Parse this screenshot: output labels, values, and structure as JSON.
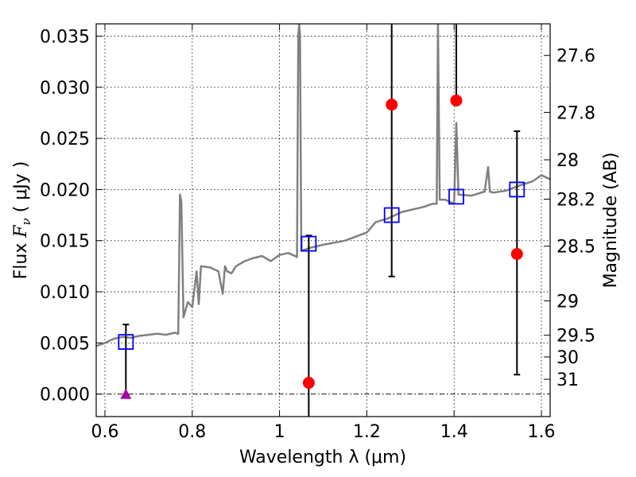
{
  "chart_data": {
    "type": "scatter",
    "xlabel": "Wavelength  λ (μm)",
    "ylabel_prefix": "Flux  ",
    "ylabel_symbol": "F",
    "ylabel_sub": "ν",
    "ylabel_suffix": "  ( μJy )",
    "right_ylabel": "Magnitude (AB)",
    "xlim": [
      0.58,
      1.62
    ],
    "ylim": [
      -0.0022,
      0.0362
    ],
    "grid": true,
    "x_ticks": [
      {
        "value": 0.6,
        "label": "0.6"
      },
      {
        "value": 0.8,
        "label": "0.8"
      },
      {
        "value": 1.0,
        "label": "1"
      },
      {
        "value": 1.2,
        "label": "1.2"
      },
      {
        "value": 1.4,
        "label": "1.4"
      },
      {
        "value": 1.6,
        "label": "1.6"
      }
    ],
    "y_ticks": [
      {
        "value": 0.0,
        "label": "0.000"
      },
      {
        "value": 0.005,
        "label": "0.005"
      },
      {
        "value": 0.01,
        "label": "0.010"
      },
      {
        "value": 0.015,
        "label": "0.015"
      },
      {
        "value": 0.02,
        "label": "0.020"
      },
      {
        "value": 0.025,
        "label": "0.025"
      },
      {
        "value": 0.03,
        "label": "0.030"
      },
      {
        "value": 0.035,
        "label": "0.035"
      }
    ],
    "magnitude_ticks": [
      {
        "mag": 27.6,
        "label": "27.6"
      },
      {
        "mag": 27.8,
        "label": "27.8"
      },
      {
        "mag": 28.0,
        "label": "28"
      },
      {
        "mag": 28.2,
        "label": "28.2"
      },
      {
        "mag": 28.5,
        "label": "28.5"
      },
      {
        "mag": 29.0,
        "label": "29"
      },
      {
        "mag": 29.5,
        "label": "29.5"
      },
      {
        "mag": 30.0,
        "label": "30"
      },
      {
        "mag": 31.0,
        "label": "31"
      }
    ],
    "model_sed": {
      "name": "model spectrum",
      "color": "#808080",
      "x": [
        0.58,
        0.6,
        0.62,
        0.64,
        0.66,
        0.68,
        0.7,
        0.72,
        0.74,
        0.76,
        0.768,
        0.772,
        0.775,
        0.78,
        0.79,
        0.8,
        0.81,
        0.815,
        0.82,
        0.84,
        0.86,
        0.87,
        0.875,
        0.88,
        0.89,
        0.9,
        0.92,
        0.94,
        0.96,
        0.98,
        1.0,
        1.02,
        1.03,
        1.04,
        1.043,
        1.045,
        1.047,
        1.05,
        1.07,
        1.1,
        1.15,
        1.2,
        1.22,
        1.25,
        1.28,
        1.3,
        1.33,
        1.35,
        1.36,
        1.363,
        1.367,
        1.38,
        1.4,
        1.405,
        1.41,
        1.44,
        1.47,
        1.478,
        1.482,
        1.49,
        1.52,
        1.55,
        1.58,
        1.6,
        1.62
      ],
      "y": [
        0.0047,
        0.005,
        0.0054,
        0.0056,
        0.0055,
        0.0057,
        0.0058,
        0.0059,
        0.0058,
        0.006,
        0.0059,
        0.0195,
        0.0188,
        0.0075,
        0.009,
        0.0085,
        0.012,
        0.0088,
        0.0125,
        0.0124,
        0.012,
        0.0098,
        0.0125,
        0.012,
        0.0118,
        0.0125,
        0.013,
        0.0133,
        0.0135,
        0.013,
        0.0136,
        0.0138,
        0.0136,
        0.0134,
        0.035,
        0.0362,
        0.035,
        0.014,
        0.0143,
        0.0146,
        0.015,
        0.0158,
        0.0168,
        0.0172,
        0.0178,
        0.018,
        0.0183,
        0.0186,
        0.0186,
        0.0362,
        0.019,
        0.019,
        0.0186,
        0.0265,
        0.0195,
        0.0194,
        0.0198,
        0.0222,
        0.0198,
        0.0197,
        0.0199,
        0.0204,
        0.0208,
        0.0214,
        0.021
      ]
    },
    "observed": {
      "name": "observed fluxes",
      "color": "#ff0000",
      "points": [
        {
          "x": 1.067,
          "y": 0.0011,
          "err_low": -0.0022,
          "err_high": 0.0155
        },
        {
          "x": 1.257,
          "y": 0.0283,
          "err_low": 0.0115,
          "err_high": 0.0362
        },
        {
          "x": 1.405,
          "y": 0.0287,
          "err_low": 0.0287,
          "err_high": 0.0362
        },
        {
          "x": 1.544,
          "y": 0.0137,
          "err_low": 0.0019,
          "err_high": 0.0257
        }
      ]
    },
    "upper_limit": {
      "name": "upper limit",
      "color": "#aa00aa",
      "x": 0.648,
      "y": 0.0,
      "err_high": 0.0068
    },
    "model_photometry": {
      "name": "model photometry",
      "color": "#0000ff",
      "points": [
        {
          "x": 0.648,
          "y": 0.0051
        },
        {
          "x": 1.067,
          "y": 0.0147
        },
        {
          "x": 1.257,
          "y": 0.0175
        },
        {
          "x": 1.405,
          "y": 0.0193
        },
        {
          "x": 1.544,
          "y": 0.02
        }
      ]
    }
  }
}
